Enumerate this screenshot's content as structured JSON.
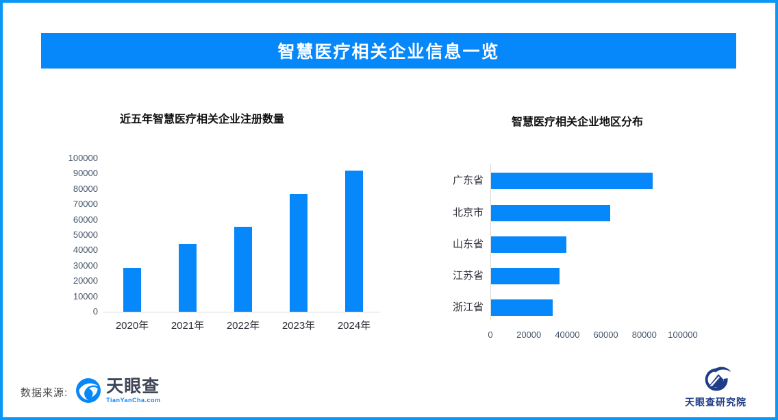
{
  "page": {
    "title": "智慧医疗相关企业信息一览"
  },
  "colors": {
    "accent": "#0788FA",
    "border": "#0C96F5",
    "bar": "#0788FA",
    "axis_line": "#D9D9D9",
    "numeric_tick": "#44546A",
    "category_label": "#2E2E38",
    "institute_navy": "#1E3C87"
  },
  "footer": {
    "source_label": "数据来源:",
    "brand_name": "天眼查",
    "brand_domain": "TianYanCha.com",
    "institute_name": "天眼查研究院"
  },
  "chart_data": [
    {
      "type": "bar",
      "title": "近五年智慧医疗相关企业注册数量",
      "categories": [
        "2020年",
        "2021年",
        "2022年",
        "2023年",
        "2024年"
      ],
      "values": [
        28500,
        44000,
        55500,
        77000,
        92000
      ],
      "ylim": [
        0,
        100000
      ],
      "ytick_step": 10000,
      "grid": false,
      "legend": "none",
      "bar_color": "#0788FA"
    },
    {
      "type": "horizontal_bar",
      "title": "智慧医疗相关企业地区分布",
      "categories": [
        "广东省",
        "北京市",
        "山东省",
        "江苏省",
        "浙江省"
      ],
      "values": [
        84000,
        62000,
        39000,
        35500,
        32000
      ],
      "xlim": [
        0,
        100000
      ],
      "xtick_step": 20000,
      "grid": false,
      "legend": "none",
      "bar_color": "#0788FA"
    }
  ]
}
